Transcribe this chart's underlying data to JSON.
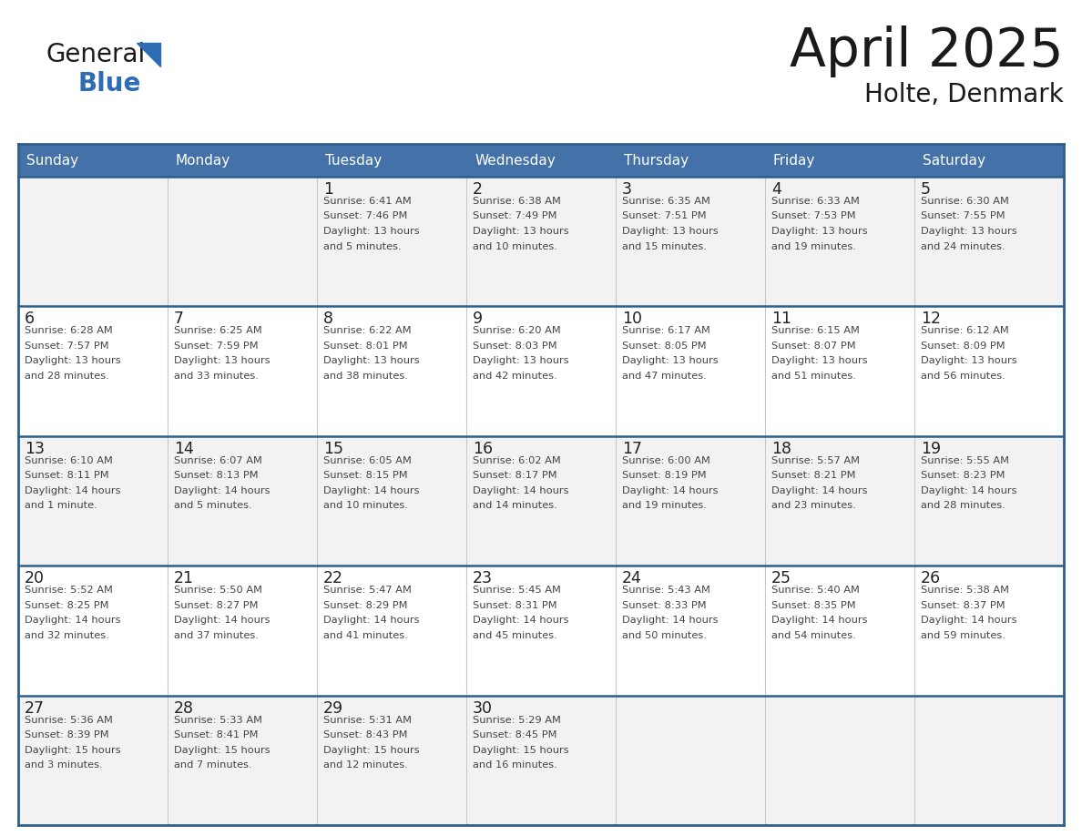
{
  "title": "April 2025",
  "subtitle": "Holte, Denmark",
  "header_bg_color": "#4472a8",
  "header_text_color": "#ffffff",
  "cell_bg_color": "#ffffff",
  "cell_bg_alt": "#f2f2f2",
  "border_color": "#2e5f8a",
  "separator_color": "#c8c8c8",
  "day_number_color": "#222222",
  "cell_text_color": "#444444",
  "days_of_week": [
    "Sunday",
    "Monday",
    "Tuesday",
    "Wednesday",
    "Thursday",
    "Friday",
    "Saturday"
  ],
  "weeks": [
    [
      {
        "day": "",
        "sunrise": "",
        "sunset": "",
        "daylight": ""
      },
      {
        "day": "",
        "sunrise": "",
        "sunset": "",
        "daylight": ""
      },
      {
        "day": "1",
        "sunrise": "Sunrise: 6:41 AM",
        "sunset": "Sunset: 7:46 PM",
        "daylight": "Daylight: 13 hours\nand 5 minutes."
      },
      {
        "day": "2",
        "sunrise": "Sunrise: 6:38 AM",
        "sunset": "Sunset: 7:49 PM",
        "daylight": "Daylight: 13 hours\nand 10 minutes."
      },
      {
        "day": "3",
        "sunrise": "Sunrise: 6:35 AM",
        "sunset": "Sunset: 7:51 PM",
        "daylight": "Daylight: 13 hours\nand 15 minutes."
      },
      {
        "day": "4",
        "sunrise": "Sunrise: 6:33 AM",
        "sunset": "Sunset: 7:53 PM",
        "daylight": "Daylight: 13 hours\nand 19 minutes."
      },
      {
        "day": "5",
        "sunrise": "Sunrise: 6:30 AM",
        "sunset": "Sunset: 7:55 PM",
        "daylight": "Daylight: 13 hours\nand 24 minutes."
      }
    ],
    [
      {
        "day": "6",
        "sunrise": "Sunrise: 6:28 AM",
        "sunset": "Sunset: 7:57 PM",
        "daylight": "Daylight: 13 hours\nand 28 minutes."
      },
      {
        "day": "7",
        "sunrise": "Sunrise: 6:25 AM",
        "sunset": "Sunset: 7:59 PM",
        "daylight": "Daylight: 13 hours\nand 33 minutes."
      },
      {
        "day": "8",
        "sunrise": "Sunrise: 6:22 AM",
        "sunset": "Sunset: 8:01 PM",
        "daylight": "Daylight: 13 hours\nand 38 minutes."
      },
      {
        "day": "9",
        "sunrise": "Sunrise: 6:20 AM",
        "sunset": "Sunset: 8:03 PM",
        "daylight": "Daylight: 13 hours\nand 42 minutes."
      },
      {
        "day": "10",
        "sunrise": "Sunrise: 6:17 AM",
        "sunset": "Sunset: 8:05 PM",
        "daylight": "Daylight: 13 hours\nand 47 minutes."
      },
      {
        "day": "11",
        "sunrise": "Sunrise: 6:15 AM",
        "sunset": "Sunset: 8:07 PM",
        "daylight": "Daylight: 13 hours\nand 51 minutes."
      },
      {
        "day": "12",
        "sunrise": "Sunrise: 6:12 AM",
        "sunset": "Sunset: 8:09 PM",
        "daylight": "Daylight: 13 hours\nand 56 minutes."
      }
    ],
    [
      {
        "day": "13",
        "sunrise": "Sunrise: 6:10 AM",
        "sunset": "Sunset: 8:11 PM",
        "daylight": "Daylight: 14 hours\nand 1 minute."
      },
      {
        "day": "14",
        "sunrise": "Sunrise: 6:07 AM",
        "sunset": "Sunset: 8:13 PM",
        "daylight": "Daylight: 14 hours\nand 5 minutes."
      },
      {
        "day": "15",
        "sunrise": "Sunrise: 6:05 AM",
        "sunset": "Sunset: 8:15 PM",
        "daylight": "Daylight: 14 hours\nand 10 minutes."
      },
      {
        "day": "16",
        "sunrise": "Sunrise: 6:02 AM",
        "sunset": "Sunset: 8:17 PM",
        "daylight": "Daylight: 14 hours\nand 14 minutes."
      },
      {
        "day": "17",
        "sunrise": "Sunrise: 6:00 AM",
        "sunset": "Sunset: 8:19 PM",
        "daylight": "Daylight: 14 hours\nand 19 minutes."
      },
      {
        "day": "18",
        "sunrise": "Sunrise: 5:57 AM",
        "sunset": "Sunset: 8:21 PM",
        "daylight": "Daylight: 14 hours\nand 23 minutes."
      },
      {
        "day": "19",
        "sunrise": "Sunrise: 5:55 AM",
        "sunset": "Sunset: 8:23 PM",
        "daylight": "Daylight: 14 hours\nand 28 minutes."
      }
    ],
    [
      {
        "day": "20",
        "sunrise": "Sunrise: 5:52 AM",
        "sunset": "Sunset: 8:25 PM",
        "daylight": "Daylight: 14 hours\nand 32 minutes."
      },
      {
        "day": "21",
        "sunrise": "Sunrise: 5:50 AM",
        "sunset": "Sunset: 8:27 PM",
        "daylight": "Daylight: 14 hours\nand 37 minutes."
      },
      {
        "day": "22",
        "sunrise": "Sunrise: 5:47 AM",
        "sunset": "Sunset: 8:29 PM",
        "daylight": "Daylight: 14 hours\nand 41 minutes."
      },
      {
        "day": "23",
        "sunrise": "Sunrise: 5:45 AM",
        "sunset": "Sunset: 8:31 PM",
        "daylight": "Daylight: 14 hours\nand 45 minutes."
      },
      {
        "day": "24",
        "sunrise": "Sunrise: 5:43 AM",
        "sunset": "Sunset: 8:33 PM",
        "daylight": "Daylight: 14 hours\nand 50 minutes."
      },
      {
        "day": "25",
        "sunrise": "Sunrise: 5:40 AM",
        "sunset": "Sunset: 8:35 PM",
        "daylight": "Daylight: 14 hours\nand 54 minutes."
      },
      {
        "day": "26",
        "sunrise": "Sunrise: 5:38 AM",
        "sunset": "Sunset: 8:37 PM",
        "daylight": "Daylight: 14 hours\nand 59 minutes."
      }
    ],
    [
      {
        "day": "27",
        "sunrise": "Sunrise: 5:36 AM",
        "sunset": "Sunset: 8:39 PM",
        "daylight": "Daylight: 15 hours\nand 3 minutes."
      },
      {
        "day": "28",
        "sunrise": "Sunrise: 5:33 AM",
        "sunset": "Sunset: 8:41 PM",
        "daylight": "Daylight: 15 hours\nand 7 minutes."
      },
      {
        "day": "29",
        "sunrise": "Sunrise: 5:31 AM",
        "sunset": "Sunset: 8:43 PM",
        "daylight": "Daylight: 15 hours\nand 12 minutes."
      },
      {
        "day": "30",
        "sunrise": "Sunrise: 5:29 AM",
        "sunset": "Sunset: 8:45 PM",
        "daylight": "Daylight: 15 hours\nand 16 minutes."
      },
      {
        "day": "",
        "sunrise": "",
        "sunset": "",
        "daylight": ""
      },
      {
        "day": "",
        "sunrise": "",
        "sunset": "",
        "daylight": ""
      },
      {
        "day": "",
        "sunrise": "",
        "sunset": "",
        "daylight": ""
      }
    ]
  ],
  "logo_text_general": "General",
  "logo_text_blue": "Blue",
  "logo_color_general": "#1a1a1a",
  "logo_color_blue": "#2e6db4",
  "logo_triangle_color": "#2e6db4",
  "title_color": "#1a1a1a",
  "subtitle_color": "#1a1a1a"
}
